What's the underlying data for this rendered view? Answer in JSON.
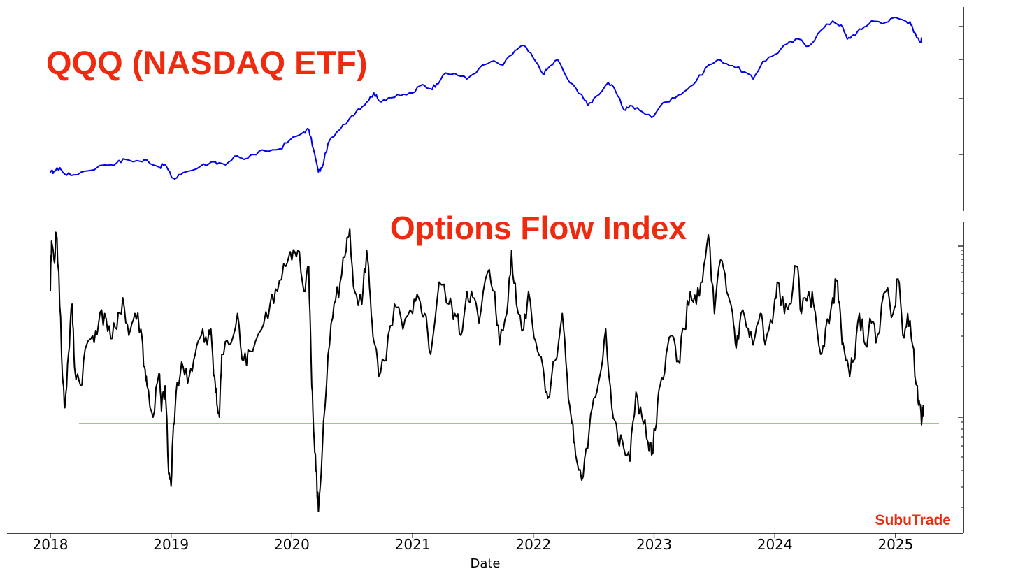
{
  "chart_data": [
    {
      "type": "line",
      "title": "QQQ (NASDAQ ETF)",
      "series": [
        {
          "color": "#0000ee",
          "points": [
            [
              2018.0,
              21
            ],
            [
              2018.03,
              23
            ],
            [
              2018.08,
              28
            ],
            [
              2018.1,
              22
            ],
            [
              2018.17,
              17
            ],
            [
              2018.28,
              23
            ],
            [
              2018.45,
              32
            ],
            [
              2018.55,
              35
            ],
            [
              2018.62,
              40
            ],
            [
              2018.75,
              37
            ],
            [
              2018.8,
              39
            ],
            [
              2018.9,
              29
            ],
            [
              2018.95,
              33
            ],
            [
              2019.0,
              16
            ],
            [
              2019.03,
              12
            ],
            [
              2019.1,
              21
            ],
            [
              2019.25,
              31
            ],
            [
              2019.33,
              36
            ],
            [
              2019.38,
              33
            ],
            [
              2019.45,
              32
            ],
            [
              2019.55,
              45
            ],
            [
              2019.62,
              41
            ],
            [
              2019.68,
              47
            ],
            [
              2019.78,
              52
            ],
            [
              2019.9,
              55
            ],
            [
              2019.98,
              67
            ],
            [
              2020.1,
              79
            ],
            [
              2020.14,
              83
            ],
            [
              2020.18,
              54
            ],
            [
              2020.22,
              22
            ],
            [
              2020.25,
              28
            ],
            [
              2020.3,
              63
            ],
            [
              2020.4,
              83
            ],
            [
              2020.5,
              103
            ],
            [
              2020.55,
              112
            ],
            [
              2020.62,
              122
            ],
            [
              2020.68,
              135
            ],
            [
              2020.72,
              124
            ],
            [
              2020.8,
              128
            ],
            [
              2020.9,
              131
            ],
            [
              2021.0,
              135
            ],
            [
              2021.08,
              147
            ],
            [
              2021.15,
              141
            ],
            [
              2021.2,
              148
            ],
            [
              2021.25,
              160
            ],
            [
              2021.35,
              163
            ],
            [
              2021.45,
              155
            ],
            [
              2021.55,
              170
            ],
            [
              2021.65,
              180
            ],
            [
              2021.75,
              175
            ],
            [
              2021.85,
              196
            ],
            [
              2021.92,
              203
            ],
            [
              2022.0,
              185
            ],
            [
              2022.08,
              162
            ],
            [
              2022.12,
              170
            ],
            [
              2022.2,
              183
            ],
            [
              2022.3,
              150
            ],
            [
              2022.4,
              133
            ],
            [
              2022.45,
              117
            ],
            [
              2022.52,
              130
            ],
            [
              2022.62,
              150
            ],
            [
              2022.68,
              138
            ],
            [
              2022.75,
              111
            ],
            [
              2022.8,
              117
            ],
            [
              2022.88,
              110
            ],
            [
              2022.98,
              100
            ],
            [
              2023.05,
              116
            ],
            [
              2023.15,
              128
            ],
            [
              2023.25,
              137
            ],
            [
              2023.35,
              152
            ],
            [
              2023.45,
              175
            ],
            [
              2023.55,
              182
            ],
            [
              2023.65,
              174
            ],
            [
              2023.75,
              165
            ],
            [
              2023.82,
              155
            ],
            [
              2023.9,
              180
            ],
            [
              2024.0,
              190
            ],
            [
              2024.1,
              205
            ],
            [
              2024.2,
              212
            ],
            [
              2024.28,
              202
            ],
            [
              2024.38,
              224
            ],
            [
              2024.48,
              238
            ],
            [
              2024.55,
              232
            ],
            [
              2024.6,
              212
            ],
            [
              2024.65,
              218
            ],
            [
              2024.72,
              226
            ],
            [
              2024.8,
              238
            ],
            [
              2024.92,
              236
            ],
            [
              2025.0,
              243
            ],
            [
              2025.08,
              238
            ],
            [
              2025.12,
              237
            ],
            [
              2025.15,
              222
            ],
            [
              2025.2,
              208
            ],
            [
              2025.22,
              213
            ]
          ]
        }
      ]
    },
    {
      "type": "line",
      "title": "Options Flow Index",
      "xlabel": "Date",
      "xticks": [
        "2018",
        "2019",
        "2020",
        "2021",
        "2022",
        "2023",
        "2024",
        "2025"
      ],
      "xlim": [
        2018.0,
        2025.4
      ],
      "reference_line": {
        "y": 0,
        "color": "#7fb26a"
      },
      "series": [
        {
          "color": "#000000",
          "points": [
            [
              2018.0,
              42
            ],
            [
              2018.01,
              58
            ],
            [
              2018.03,
              52
            ],
            [
              2018.05,
              60
            ],
            [
              2018.07,
              48
            ],
            [
              2018.1,
              15
            ],
            [
              2018.12,
              5
            ],
            [
              2018.15,
              22
            ],
            [
              2018.18,
              38
            ],
            [
              2018.2,
              18
            ],
            [
              2018.25,
              12
            ],
            [
              2018.3,
              25
            ],
            [
              2018.35,
              28
            ],
            [
              2018.4,
              32
            ],
            [
              2018.45,
              35
            ],
            [
              2018.5,
              27
            ],
            [
              2018.55,
              30
            ],
            [
              2018.6,
              40
            ],
            [
              2018.65,
              28
            ],
            [
              2018.7,
              35
            ],
            [
              2018.75,
              30
            ],
            [
              2018.78,
              18
            ],
            [
              2018.8,
              12
            ],
            [
              2018.85,
              2
            ],
            [
              2018.9,
              16
            ],
            [
              2018.92,
              4
            ],
            [
              2018.95,
              12
            ],
            [
              2018.98,
              -16
            ],
            [
              2019.0,
              -20
            ],
            [
              2019.02,
              0
            ],
            [
              2019.05,
              13
            ],
            [
              2019.1,
              18
            ],
            [
              2019.15,
              15
            ],
            [
              2019.2,
              22
            ],
            [
              2019.25,
              28
            ],
            [
              2019.3,
              25
            ],
            [
              2019.33,
              30
            ],
            [
              2019.36,
              15
            ],
            [
              2019.38,
              6
            ],
            [
              2019.4,
              2
            ],
            [
              2019.42,
              22
            ],
            [
              2019.48,
              25
            ],
            [
              2019.55,
              35
            ],
            [
              2019.6,
              20
            ],
            [
              2019.65,
              23
            ],
            [
              2019.75,
              30
            ],
            [
              2019.82,
              38
            ],
            [
              2019.88,
              42
            ],
            [
              2019.95,
              50
            ],
            [
              2020.0,
              52
            ],
            [
              2020.05,
              55
            ],
            [
              2020.1,
              42
            ],
            [
              2020.14,
              50
            ],
            [
              2020.16,
              20
            ],
            [
              2020.18,
              -2
            ],
            [
              2020.2,
              -15
            ],
            [
              2020.22,
              -28
            ],
            [
              2020.25,
              -10
            ],
            [
              2020.3,
              22
            ],
            [
              2020.35,
              38
            ],
            [
              2020.4,
              45
            ],
            [
              2020.45,
              55
            ],
            [
              2020.48,
              62
            ],
            [
              2020.52,
              42
            ],
            [
              2020.58,
              38
            ],
            [
              2020.62,
              55
            ],
            [
              2020.65,
              40
            ],
            [
              2020.68,
              26
            ],
            [
              2020.72,
              15
            ],
            [
              2020.78,
              20
            ],
            [
              2020.85,
              38
            ],
            [
              2020.92,
              30
            ],
            [
              2021.0,
              35
            ],
            [
              2021.05,
              40
            ],
            [
              2021.1,
              35
            ],
            [
              2021.15,
              22
            ],
            [
              2021.22,
              45
            ],
            [
              2021.3,
              38
            ],
            [
              2021.35,
              35
            ],
            [
              2021.4,
              28
            ],
            [
              2021.45,
              42
            ],
            [
              2021.5,
              40
            ],
            [
              2021.55,
              32
            ],
            [
              2021.62,
              48
            ],
            [
              2021.68,
              42
            ],
            [
              2021.72,
              25
            ],
            [
              2021.78,
              35
            ],
            [
              2021.82,
              55
            ],
            [
              2021.86,
              38
            ],
            [
              2021.92,
              30
            ],
            [
              2021.96,
              42
            ],
            [
              2022.02,
              26
            ],
            [
              2022.08,
              18
            ],
            [
              2022.12,
              8
            ],
            [
              2022.18,
              20
            ],
            [
              2022.24,
              35
            ],
            [
              2022.28,
              15
            ],
            [
              2022.32,
              0
            ],
            [
              2022.35,
              -10
            ],
            [
              2022.4,
              -18
            ],
            [
              2022.45,
              -8
            ],
            [
              2022.5,
              8
            ],
            [
              2022.55,
              15
            ],
            [
              2022.6,
              30
            ],
            [
              2022.65,
              5
            ],
            [
              2022.7,
              -5
            ],
            [
              2022.75,
              -8
            ],
            [
              2022.8,
              -12
            ],
            [
              2022.85,
              10
            ],
            [
              2022.9,
              2
            ],
            [
              2022.95,
              -6
            ],
            [
              2022.98,
              -10
            ],
            [
              2023.02,
              0
            ],
            [
              2023.05,
              12
            ],
            [
              2023.1,
              22
            ],
            [
              2023.15,
              28
            ],
            [
              2023.2,
              20
            ],
            [
              2023.25,
              30
            ],
            [
              2023.3,
              42
            ],
            [
              2023.35,
              38
            ],
            [
              2023.4,
              45
            ],
            [
              2023.45,
              60
            ],
            [
              2023.5,
              35
            ],
            [
              2023.55,
              52
            ],
            [
              2023.6,
              42
            ],
            [
              2023.65,
              35
            ],
            [
              2023.68,
              24
            ],
            [
              2023.72,
              35
            ],
            [
              2023.78,
              30
            ],
            [
              2023.82,
              25
            ],
            [
              2023.88,
              35
            ],
            [
              2023.92,
              25
            ],
            [
              2023.98,
              32
            ],
            [
              2024.02,
              45
            ],
            [
              2024.08,
              35
            ],
            [
              2024.12,
              38
            ],
            [
              2024.18,
              50
            ],
            [
              2024.22,
              35
            ],
            [
              2024.28,
              42
            ],
            [
              2024.32,
              38
            ],
            [
              2024.38,
              22
            ],
            [
              2024.42,
              30
            ],
            [
              2024.48,
              40
            ],
            [
              2024.52,
              45
            ],
            [
              2024.55,
              30
            ],
            [
              2024.58,
              22
            ],
            [
              2024.62,
              15
            ],
            [
              2024.65,
              20
            ],
            [
              2024.7,
              35
            ],
            [
              2024.75,
              25
            ],
            [
              2024.8,
              32
            ],
            [
              2024.85,
              28
            ],
            [
              2024.92,
              42
            ],
            [
              2024.98,
              35
            ],
            [
              2025.02,
              46
            ],
            [
              2025.06,
              28
            ],
            [
              2025.1,
              35
            ],
            [
              2025.14,
              25
            ],
            [
              2025.18,
              12
            ],
            [
              2025.2,
              6
            ],
            [
              2025.22,
              2
            ],
            [
              2025.23,
              6
            ]
          ]
        }
      ]
    }
  ],
  "watermark": "SubuTrade"
}
